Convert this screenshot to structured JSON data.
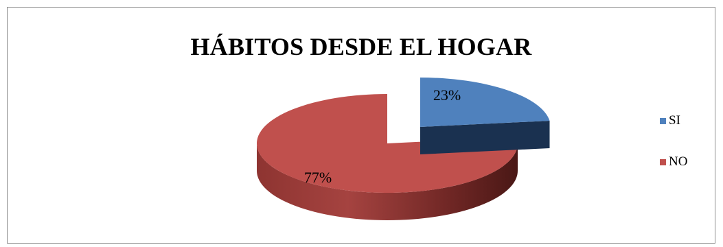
{
  "chart_data": {
    "type": "pie",
    "title": "HÁBITOS DESDE EL HOGAR",
    "categories": [
      "SI",
      "NO"
    ],
    "values": [
      23,
      77
    ],
    "value_labels": [
      "23%",
      "77%"
    ],
    "colors": {
      "SI": "#4f81bd",
      "NO": "#c0504d"
    },
    "style": "3d-exploded",
    "legend_position": "right"
  }
}
